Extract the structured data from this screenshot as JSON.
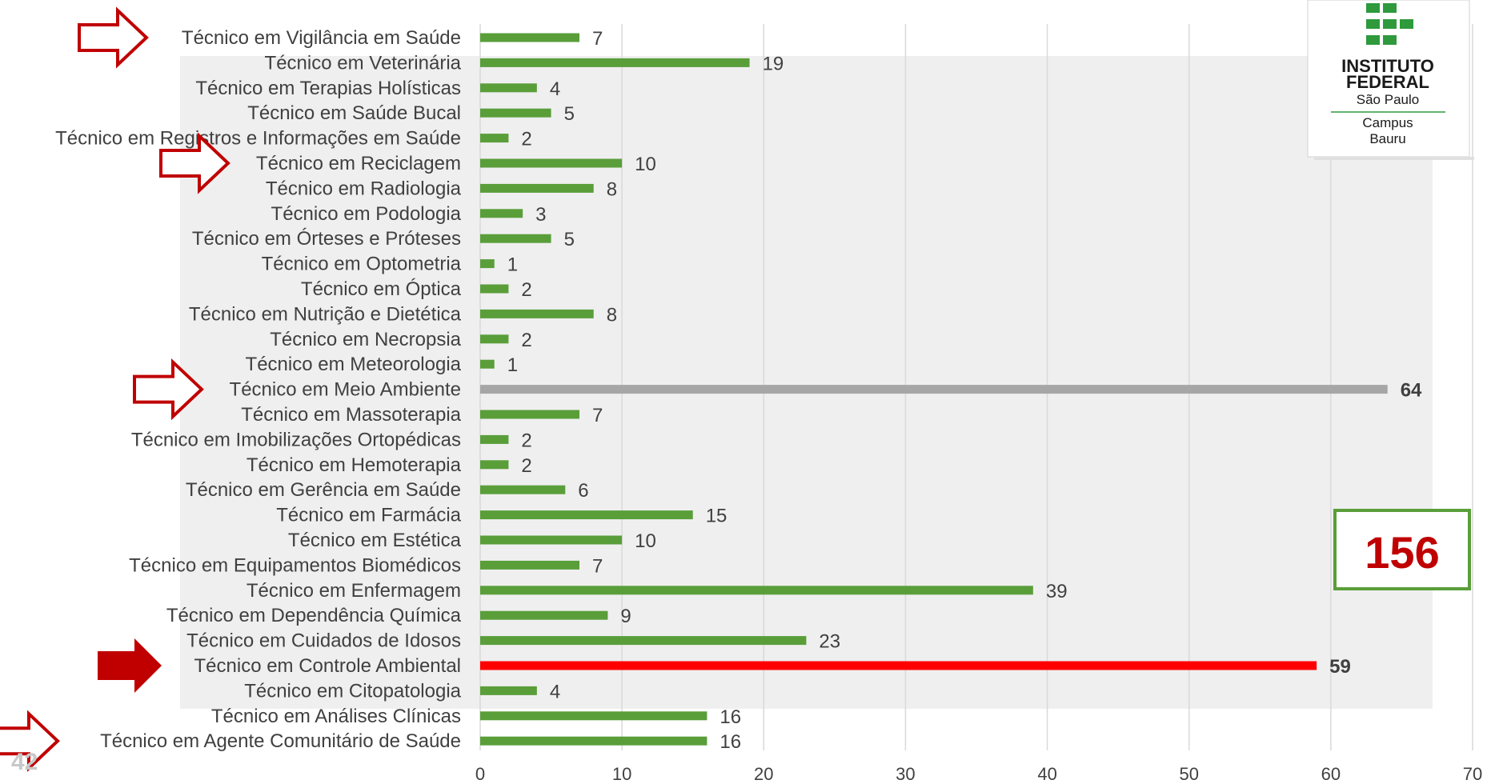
{
  "chart_data": {
    "type": "bar",
    "orientation": "horizontal",
    "title": "",
    "xlabel": "",
    "ylabel": "",
    "xlim": [
      0,
      70
    ],
    "xticks": [
      0,
      10,
      20,
      30,
      40,
      50,
      60,
      70
    ],
    "grid": "vertical",
    "categories": [
      "Técnico em Vigilância em Saúde",
      "Técnico em Veterinária",
      "Técnico em Terapias Holísticas",
      "Técnico em Saúde Bucal",
      "Técnico em Registros e Informações em Saúde",
      "Técnico em Reciclagem",
      "Técnico em Radiologia",
      "Técnico em Podologia",
      "Técnico em Órteses e Próteses",
      "Técnico em Optometria",
      "Técnico em Óptica",
      "Técnico em Nutrição e Dietética",
      "Técnico em Necropsia",
      "Técnico em Meteorologia",
      "Técnico em Meio Ambiente",
      "Técnico em Massoterapia",
      "Técnico em Imobilizações Ortopédicas",
      "Técnico em Hemoterapia",
      "Técnico em Gerência em Saúde",
      "Técnico em Farmácia",
      "Técnico em Estética",
      "Técnico em Equipamentos Biomédicos",
      "Técnico em Enfermagem",
      "Técnico em Dependência Química",
      "Técnico em Cuidados de Idosos",
      "Técnico em Controle Ambiental",
      "Técnico em Citopatologia",
      "Técnico em Análises Clínicas",
      "Técnico em Agente Comunitário de Saúde"
    ],
    "values": [
      7,
      19,
      4,
      5,
      2,
      10,
      8,
      3,
      5,
      1,
      2,
      8,
      2,
      1,
      64,
      7,
      2,
      2,
      6,
      15,
      10,
      7,
      39,
      9,
      23,
      59,
      4,
      16,
      16
    ],
    "highlights": {
      "Técnico em Meio Ambiente": "#a6a6a6",
      "Técnico em Controle Ambiental": "#ff0000"
    },
    "bold_value_labels": [
      "Técnico em Meio Ambiente",
      "Técnico em Controle Ambiental"
    ],
    "arrows": {
      "outline": [
        "Técnico em Vigilância em Saúde",
        "Técnico em Reciclagem",
        "Técnico em Meio Ambiente",
        "Técnico em Agente Comunitário de Saúde"
      ],
      "filled": [
        "Técnico em Controle Ambiental"
      ]
    }
  },
  "total_box": {
    "value": "156"
  },
  "page_number": "42",
  "logo": {
    "line1": "INSTITUTO",
    "line2": "FEDERAL",
    "line3": "São Paulo",
    "line4": "Campus",
    "line5": "Bauru"
  },
  "colors": {
    "bar": "#5a9e3a",
    "bar_gray": "#a6a6a6",
    "bar_red": "#ff0000",
    "arrow": "#c00000",
    "box_border": "#5a9e3a",
    "total_text": "#c00000",
    "panel_bg": "#efefef",
    "grid": "#d9d9d9"
  }
}
